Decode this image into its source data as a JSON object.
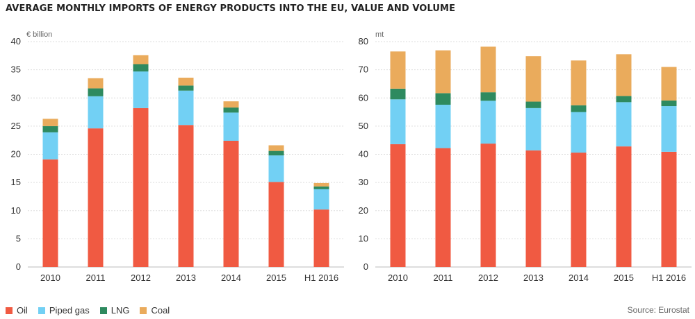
{
  "title": "AVERAGE MONTHLY IMPORTS OF ENERGY PRODUCTS INTO THE EU, VALUE AND VOLUME",
  "source": "Source: Eurostat",
  "legend": [
    {
      "name": "Oil",
      "color": "#f05a42"
    },
    {
      "name": "Piped gas",
      "color": "#72d0f4"
    },
    {
      "name": "LNG",
      "color": "#2e8a5f"
    },
    {
      "name": "Coal",
      "color": "#eaab5c"
    }
  ],
  "chart_data": [
    {
      "type": "bar",
      "stacked": true,
      "ylabel": "€ billion",
      "ylim": [
        0,
        40
      ],
      "yticks": [
        0,
        5,
        10,
        15,
        20,
        25,
        30,
        35,
        40
      ],
      "categories": [
        "2010",
        "2011",
        "2012",
        "2013",
        "2014",
        "2015",
        "H1 2016"
      ],
      "series": [
        {
          "name": "Oil",
          "values": [
            19.1,
            24.6,
            28.2,
            25.2,
            22.4,
            15.1,
            10.2
          ]
        },
        {
          "name": "Piped gas",
          "values": [
            4.8,
            5.7,
            6.5,
            6.1,
            5.0,
            4.7,
            3.6
          ]
        },
        {
          "name": "LNG",
          "values": [
            1.1,
            1.4,
            1.3,
            0.9,
            0.9,
            0.8,
            0.5
          ]
        },
        {
          "name": "Coal",
          "values": [
            1.3,
            1.8,
            1.6,
            1.4,
            1.1,
            1.0,
            0.6
          ]
        }
      ],
      "grid": true
    },
    {
      "type": "bar",
      "stacked": true,
      "ylabel": "mt",
      "ylim": [
        0,
        80
      ],
      "yticks": [
        0,
        10,
        20,
        30,
        40,
        50,
        60,
        70,
        80
      ],
      "categories": [
        "2010",
        "2011",
        "2012",
        "2013",
        "2014",
        "2015",
        "H1 2016"
      ],
      "series": [
        {
          "name": "Oil",
          "values": [
            43.6,
            42.2,
            43.8,
            41.4,
            40.6,
            42.8,
            40.9
          ]
        },
        {
          "name": "Piped gas",
          "values": [
            15.9,
            15.4,
            15.2,
            15.0,
            14.4,
            15.7,
            16.2
          ]
        },
        {
          "name": "LNG",
          "values": [
            3.8,
            4.1,
            3.0,
            2.3,
            2.4,
            2.2,
            2.0
          ]
        },
        {
          "name": "Coal",
          "values": [
            13.2,
            15.2,
            16.2,
            16.1,
            15.9,
            14.8,
            11.9
          ]
        }
      ],
      "grid": true
    }
  ]
}
